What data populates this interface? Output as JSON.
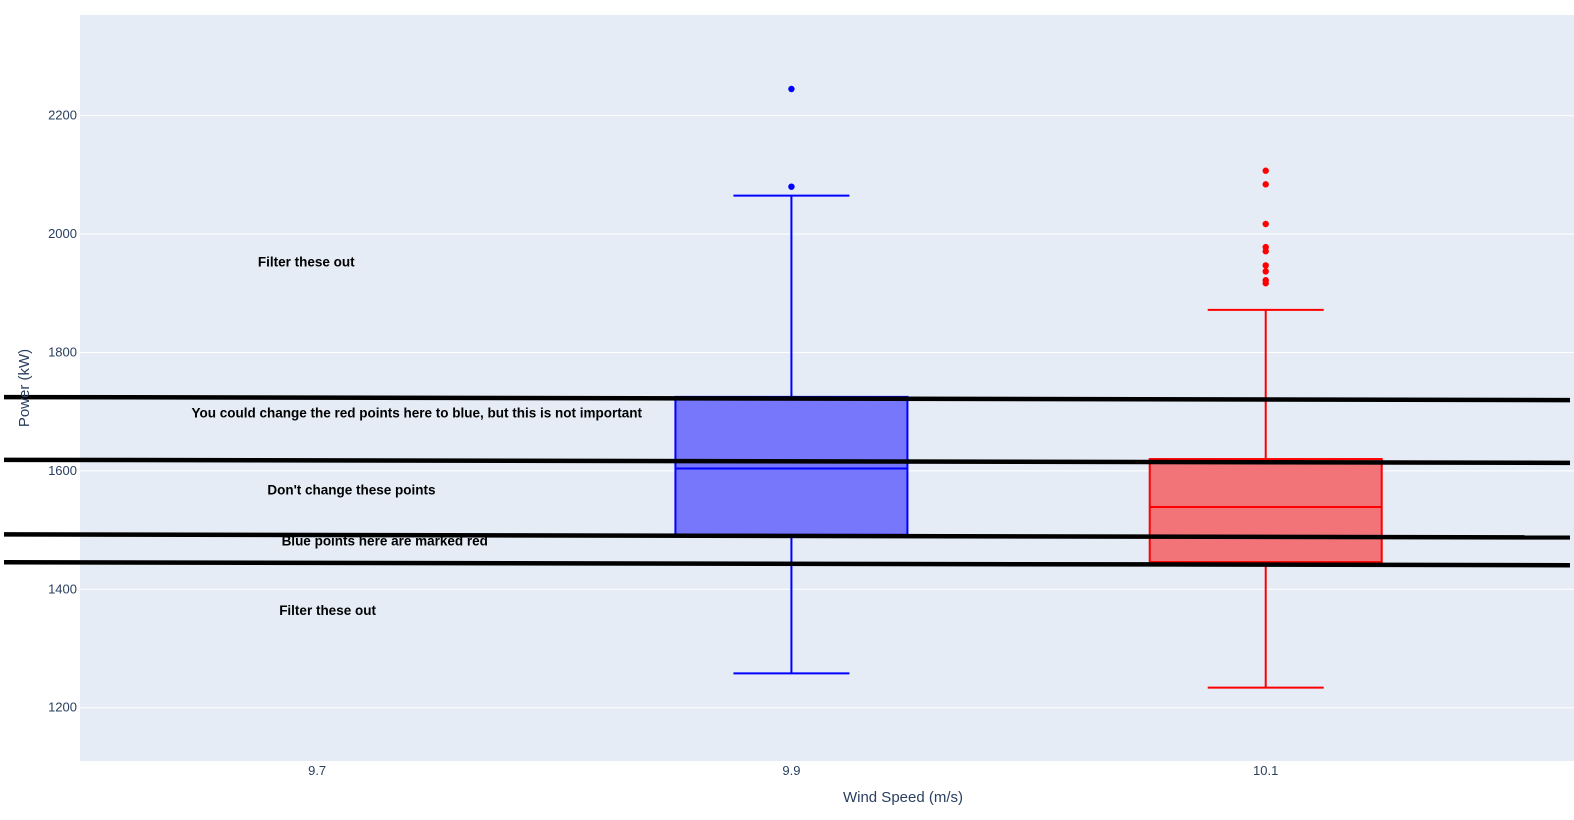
{
  "chart_data": {
    "type": "box",
    "xlabel": "Wind Speed (m/s)",
    "ylabel": "Power (kW)",
    "x_ticks": [
      9.7,
      9.9,
      10.1
    ],
    "x_range": [
      9.6,
      10.23
    ],
    "y_ticks": [
      1200,
      1400,
      1600,
      1800,
      2000,
      2200
    ],
    "y_range": [
      1110,
      2370
    ],
    "grid": true,
    "legend": false,
    "plot_bg": "#e5ecf6",
    "series": [
      {
        "x": 9.9,
        "color": "#0000ff",
        "fill": "#7777fc",
        "whisker_low": 1258,
        "q1": 1492,
        "median": 1604,
        "q3": 1725,
        "whisker_high": 2065,
        "outliers": [
          2245,
          2080
        ]
      },
      {
        "x": 10.1,
        "color": "#ff0000",
        "fill": "#f27479",
        "whisker_low": 1234,
        "q1": 1446,
        "median": 1539,
        "q3": 1620,
        "whisker_high": 1872,
        "outliers": [
          2107,
          2084,
          2017,
          1978,
          1971,
          1947,
          1937,
          1922,
          1917
        ]
      }
    ],
    "threshold_lines": [
      1723,
      1617,
      1491,
      1444
    ],
    "annotations": [
      {
        "text": "Filter these out",
        "x": 9.675,
        "y": 1945
      },
      {
        "text": "You could change the red points here to blue, but this is not important",
        "x": 9.647,
        "y": 1690
      },
      {
        "text": "Don't change these points",
        "x": 9.679,
        "y": 1560
      },
      {
        "text": "Blue points here are marked red",
        "x": 9.685,
        "y": 1474
      },
      {
        "text": "Filter these out",
        "x": 9.684,
        "y": 1357
      }
    ]
  }
}
